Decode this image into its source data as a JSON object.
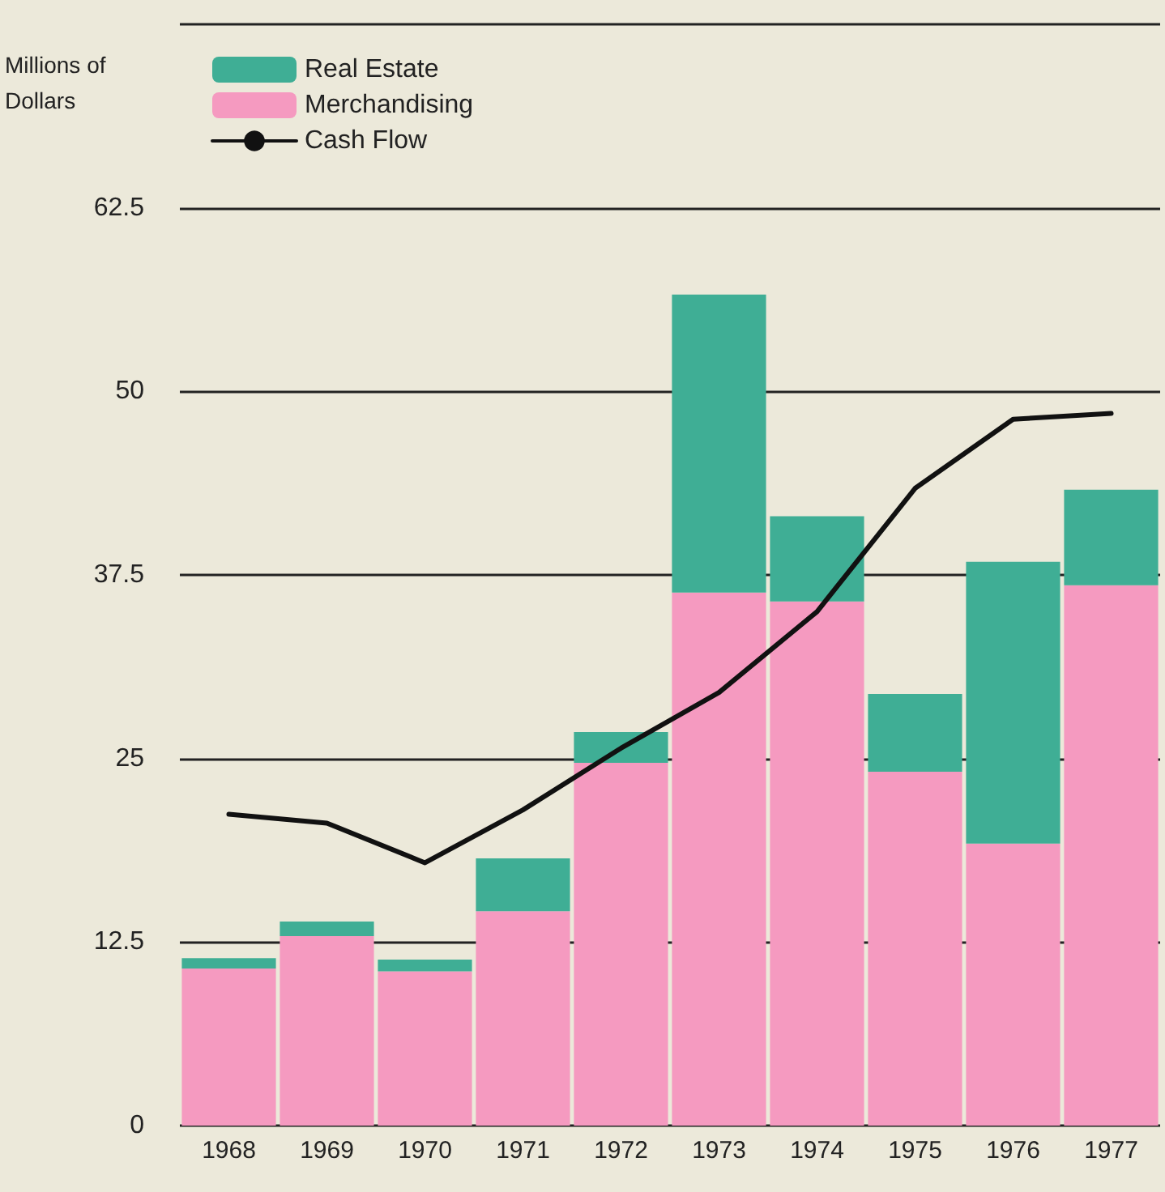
{
  "chart_data": {
    "type": "bar",
    "stacked": true,
    "ylabel": "Millions of\nDollars",
    "categories": [
      "1968",
      "1969",
      "1970",
      "1971",
      "1972",
      "1973",
      "1974",
      "1975",
      "1976",
      "1977"
    ],
    "series": [
      {
        "name": "Merchandising",
        "color": "#f59ac0",
        "values": [
          10.7,
          12.9,
          10.5,
          14.6,
          24.7,
          36.3,
          35.7,
          24.1,
          19.2,
          36.8
        ]
      },
      {
        "name": "Real Estate",
        "color": "#3fae95",
        "values": [
          0.7,
          1.0,
          0.8,
          3.6,
          2.1,
          20.3,
          5.8,
          5.3,
          19.2,
          6.5
        ]
      },
      {
        "name": "Cash Flow",
        "type": "line",
        "color": "#111111",
        "marker": "none",
        "values": [
          21.2,
          20.6,
          17.9,
          21.5,
          25.7,
          29.5,
          35.0,
          43.4,
          48.1,
          48.5
        ]
      }
    ],
    "ylim": [
      0,
      75
    ],
    "yticks": [
      0,
      12.5,
      25,
      37.5,
      50,
      62.5,
      {
        "value": 75,
        "label": null
      }
    ],
    "grid": "y",
    "legend": "top left"
  }
}
